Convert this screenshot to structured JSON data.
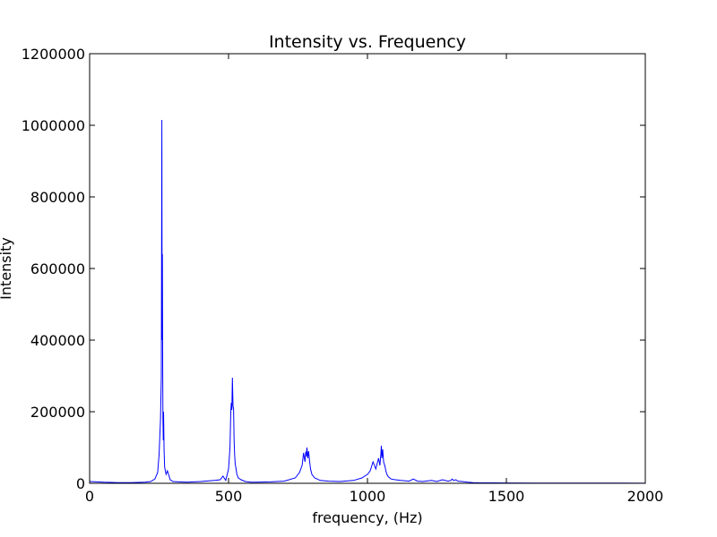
{
  "chart_data": {
    "type": "line",
    "title": "Intensity vs. Frequency",
    "xlabel": "frequency, (Hz)",
    "ylabel": "Intensity",
    "xlim": [
      0,
      2000
    ],
    "ylim": [
      0,
      1200000
    ],
    "xticks": [
      0,
      500,
      1000,
      1500,
      2000
    ],
    "xtick_labels": [
      "0",
      "500",
      "1000",
      "1500",
      "2000"
    ],
    "yticks": [
      0,
      200000,
      400000,
      600000,
      800000,
      1000000,
      1200000
    ],
    "ytick_labels": [
      "0",
      "200000",
      "400000",
      "600000",
      "800000",
      "1000000",
      "1200000"
    ],
    "grid": false,
    "line_color": "#0000ff",
    "series": [
      {
        "x": [
          0,
          50,
          100,
          150,
          200,
          220,
          235,
          245,
          250,
          255,
          258,
          260,
          261,
          262,
          263,
          264,
          265,
          266,
          268,
          270,
          275,
          280,
          290,
          300,
          320,
          350,
          400,
          450,
          470,
          480,
          490,
          500,
          505,
          508,
          510,
          512,
          514,
          516,
          518,
          520,
          522,
          524,
          527,
          530,
          535,
          545,
          560,
          580,
          600,
          650,
          700,
          740,
          755,
          765,
          770,
          775,
          778,
          780,
          782,
          785,
          788,
          792,
          795,
          800,
          810,
          830,
          860,
          900,
          950,
          980,
          1000,
          1010,
          1020,
          1030,
          1035,
          1040,
          1045,
          1048,
          1050,
          1052,
          1055,
          1058,
          1060,
          1063,
          1066,
          1070,
          1075,
          1085,
          1100,
          1120,
          1150,
          1165,
          1180,
          1200,
          1230,
          1250,
          1270,
          1290,
          1300,
          1305,
          1310,
          1318,
          1325,
          1340,
          1360,
          1380,
          1400,
          1500,
          1600,
          1700,
          1800,
          1900,
          2000
        ],
        "y": [
          5000,
          3000,
          2000,
          2000,
          3000,
          5000,
          12000,
          30000,
          80000,
          180000,
          300000,
          1015000,
          400000,
          640000,
          350000,
          180000,
          120000,
          200000,
          90000,
          45000,
          25000,
          35000,
          10000,
          5000,
          4000,
          3000,
          5000,
          8000,
          10000,
          20000,
          8000,
          40000,
          100000,
          200000,
          225000,
          205000,
          295000,
          215000,
          210000,
          120000,
          80000,
          55000,
          40000,
          25000,
          15000,
          10000,
          5000,
          3000,
          3000,
          4000,
          6000,
          15000,
          30000,
          50000,
          85000,
          60000,
          88000,
          75000,
          100000,
          70000,
          90000,
          60000,
          40000,
          25000,
          15000,
          8000,
          6000,
          5000,
          8000,
          15000,
          25000,
          35000,
          60000,
          40000,
          55000,
          70000,
          50000,
          80000,
          105000,
          70000,
          95000,
          60000,
          55000,
          48000,
          35000,
          25000,
          18000,
          12000,
          10000,
          8000,
          6000,
          12000,
          6000,
          5000,
          8000,
          5000,
          10000,
          6000,
          8000,
          12000,
          8000,
          10000,
          6000,
          5000,
          3000,
          2000,
          1500,
          1000,
          800,
          600,
          500,
          400,
          300
        ]
      }
    ]
  }
}
